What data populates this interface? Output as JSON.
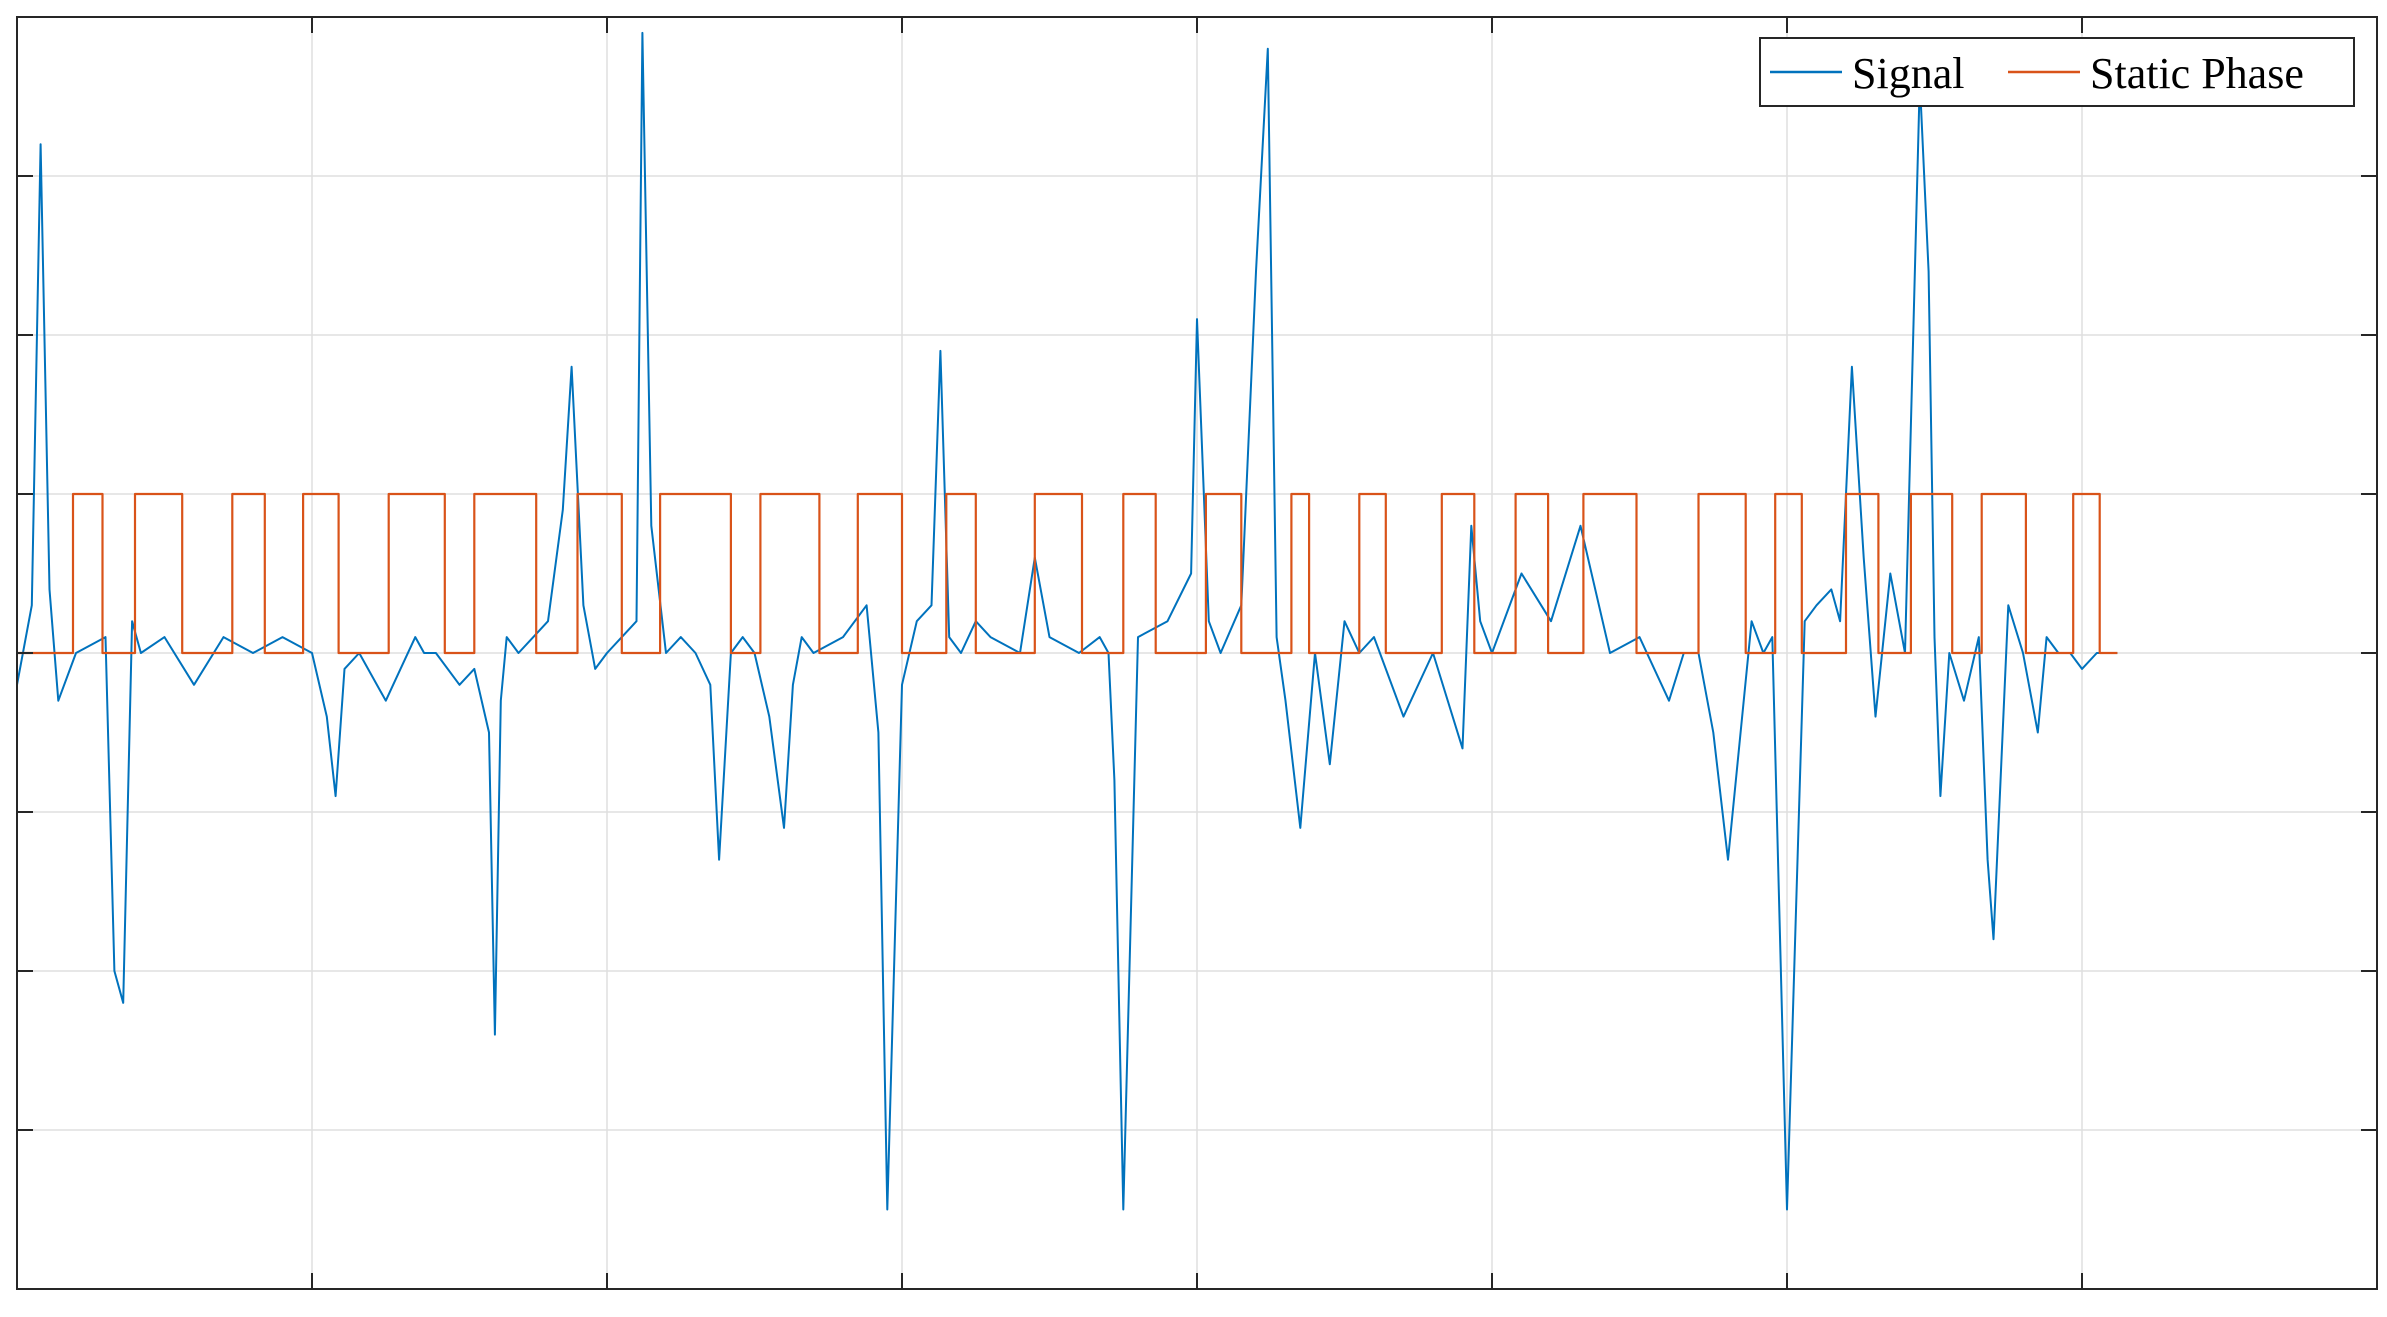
{
  "chart_data": {
    "type": "line",
    "title": "",
    "xlabel": "",
    "ylabel": "",
    "xlim": [
      0,
      8
    ],
    "ylim": [
      -4,
      4
    ],
    "x_ticks": [
      0,
      1,
      2,
      3,
      4,
      5,
      6,
      7,
      8
    ],
    "y_ticks": [
      -4,
      -3,
      -2,
      -1,
      0,
      1,
      2,
      3,
      4
    ],
    "tick_labels_visible": false,
    "grid": true,
    "legend": {
      "position": "top-right",
      "entries": [
        {
          "label": "Signal",
          "color": "#0072BD"
        },
        {
          "label": "Static Phase",
          "color": "#D95319"
        }
      ]
    },
    "series": [
      {
        "name": "Signal",
        "color": "#0072BD",
        "x": [
          0,
          0.05,
          0.08,
          0.11,
          0.14,
          0.2,
          0.3,
          0.33,
          0.36,
          0.39,
          0.42,
          0.5,
          0.6,
          0.7,
          0.8,
          0.9,
          1.0,
          1.05,
          1.08,
          1.11,
          1.16,
          1.25,
          1.3,
          1.35,
          1.38,
          1.42,
          1.5,
          1.55,
          1.6,
          1.62,
          1.64,
          1.66,
          1.7,
          1.75,
          1.8,
          1.85,
          1.88,
          1.92,
          1.96,
          2.0,
          2.05,
          2.1,
          2.12,
          2.15,
          2.2,
          2.25,
          2.3,
          2.35,
          2.38,
          2.42,
          2.46,
          2.5,
          2.55,
          2.6,
          2.63,
          2.66,
          2.7,
          2.8,
          2.88,
          2.92,
          2.95,
          3.0,
          3.05,
          3.1,
          3.13,
          3.16,
          3.2,
          3.25,
          3.3,
          3.4,
          3.45,
          3.5,
          3.6,
          3.67,
          3.7,
          3.72,
          3.75,
          3.8,
          3.9,
          3.98,
          4.0,
          4.04,
          4.08,
          4.15,
          4.2,
          4.24,
          4.27,
          4.3,
          4.35,
          4.4,
          4.45,
          4.5,
          4.55,
          4.6,
          4.7,
          4.8,
          4.9,
          4.93,
          4.96,
          5.0,
          5.1,
          5.2,
          5.3,
          5.4,
          5.5,
          5.6,
          5.65,
          5.7,
          5.75,
          5.8,
          5.88,
          5.92,
          5.95,
          6.0,
          6.06,
          6.1,
          6.15,
          6.18,
          6.22,
          6.26,
          6.3,
          6.35,
          6.4,
          6.45,
          6.48,
          6.5,
          6.52,
          6.55,
          6.6,
          6.65,
          6.68,
          6.7,
          6.75,
          6.8,
          6.85,
          6.88,
          6.92,
          6.96,
          7.0,
          7.05,
          7.1,
          7.12
        ],
        "y": [
          -0.2,
          0.3,
          3.2,
          0.4,
          -0.3,
          0.0,
          0.1,
          -2.0,
          -2.2,
          0.2,
          0.0,
          0.1,
          -0.2,
          0.1,
          0.0,
          0.1,
          0.0,
          -0.4,
          -0.9,
          -0.1,
          0.0,
          -0.3,
          -0.1,
          0.1,
          0.0,
          0.0,
          -0.2,
          -0.1,
          -0.5,
          -2.4,
          -0.3,
          0.1,
          0.0,
          0.1,
          0.2,
          0.9,
          1.8,
          0.3,
          -0.1,
          0.0,
          0.1,
          0.2,
          3.9,
          0.8,
          0.0,
          0.1,
          0.0,
          -0.2,
          -1.3,
          0.0,
          0.1,
          0.0,
          -0.4,
          -1.1,
          -0.2,
          0.1,
          0.0,
          0.1,
          0.3,
          -0.5,
          -3.5,
          -0.2,
          0.2,
          0.3,
          1.9,
          0.1,
          0.0,
          0.2,
          0.1,
          0.0,
          0.6,
          0.1,
          0.0,
          0.1,
          0.0,
          -0.8,
          -3.5,
          0.1,
          0.2,
          0.5,
          2.1,
          0.2,
          0.0,
          0.3,
          2.4,
          3.8,
          0.1,
          -0.3,
          -1.1,
          0.0,
          -0.7,
          0.2,
          0.0,
          0.1,
          -0.4,
          0.0,
          -0.6,
          0.8,
          0.2,
          0.0,
          0.5,
          0.2,
          0.8,
          0.0,
          0.1,
          -0.3,
          0.0,
          0.0,
          -0.5,
          -1.3,
          0.2,
          0.0,
          0.1,
          -3.5,
          0.2,
          0.3,
          0.4,
          0.2,
          1.8,
          0.6,
          -0.4,
          0.5,
          0.0,
          3.6,
          2.4,
          0.1,
          -0.9,
          0.0,
          -0.3,
          0.1,
          -1.3,
          -1.8,
          0.3,
          0.0,
          -0.5,
          0.1,
          0.0,
          0.0,
          -0.1,
          0.0,
          0.0,
          0.0
        ]
      },
      {
        "name": "Static Phase",
        "color": "#D95319",
        "high": 1,
        "low": 0,
        "x": [
          0.0,
          0.19,
          0.19,
          0.29,
          0.29,
          0.4,
          0.4,
          0.56,
          0.56,
          0.73,
          0.73,
          0.84,
          0.84,
          0.97,
          0.97,
          1.09,
          1.09,
          1.26,
          1.26,
          1.45,
          1.45,
          1.55,
          1.55,
          1.76,
          1.76,
          1.9,
          1.9,
          2.05,
          2.05,
          2.18,
          2.18,
          2.42,
          2.42,
          2.52,
          2.52,
          2.72,
          2.72,
          2.85,
          2.85,
          3.0,
          3.0,
          3.15,
          3.15,
          3.25,
          3.25,
          3.45,
          3.45,
          3.61,
          3.61,
          3.75,
          3.75,
          3.86,
          3.86,
          4.03,
          4.03,
          4.15,
          4.15,
          4.32,
          4.32,
          4.38,
          4.38,
          4.55,
          4.55,
          4.64,
          4.64,
          4.83,
          4.83,
          4.94,
          4.94,
          5.08,
          5.08,
          5.19,
          5.19,
          5.31,
          5.31,
          5.49,
          5.49,
          5.7,
          5.7,
          5.86,
          5.86,
          5.96,
          5.96,
          6.05,
          6.05,
          6.2,
          6.2,
          6.31,
          6.31,
          6.42,
          6.42,
          6.56,
          6.56,
          6.66,
          6.66,
          6.81,
          6.81,
          6.97,
          6.97,
          7.06,
          7.06,
          7.12
        ],
        "y": [
          0,
          0,
          1,
          1,
          0,
          0,
          1,
          1,
          0,
          0,
          1,
          1,
          0,
          0,
          1,
          1,
          0,
          0,
          1,
          1,
          0,
          0,
          1,
          1,
          0,
          0,
          1,
          1,
          0,
          0,
          1,
          1,
          0,
          0,
          1,
          1,
          0,
          0,
          1,
          1,
          0,
          0,
          1,
          1,
          0,
          0,
          1,
          1,
          0,
          0,
          1,
          1,
          0,
          0,
          1,
          1,
          0,
          0,
          1,
          1,
          0,
          0,
          1,
          1,
          0,
          0,
          1,
          1,
          0,
          0,
          1,
          1,
          0,
          0,
          1,
          1,
          0,
          0,
          1,
          1,
          0,
          0,
          1,
          1,
          0,
          0,
          1,
          1,
          0,
          0,
          1,
          1,
          0,
          0,
          1,
          1,
          0,
          0,
          1,
          1,
          0,
          0
        ]
      }
    ]
  }
}
